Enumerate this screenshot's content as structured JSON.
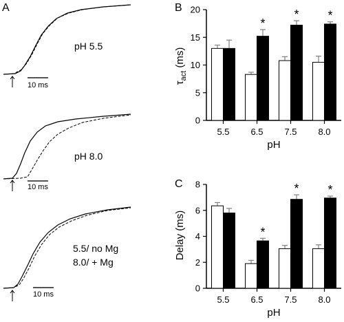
{
  "panels": {
    "a": {
      "letter": "A"
    },
    "b": {
      "letter": "B"
    },
    "c": {
      "letter": "C"
    }
  },
  "traces": [
    {
      "condition_label": "pH 5.5",
      "scale_label": "10 ms"
    },
    {
      "condition_label": "pH 8.0",
      "scale_label": "10 ms"
    },
    {
      "condition_label_line1": "5.5/ no Mg",
      "condition_label_line2": "8.0/ + Mg",
      "scale_label": "10 ms"
    }
  ],
  "colors": {
    "open_bar": "#ffffff",
    "filled_bar": "#000000",
    "axis": "#000000",
    "error_bar": "#808080"
  },
  "chart_data": [
    {
      "type": "bar",
      "panel": "B",
      "categories": [
        "5.5",
        "6.5",
        "7.5",
        "8.0"
      ],
      "series": [
        {
          "fill": "open",
          "values": [
            13.0,
            8.3,
            10.8,
            10.5
          ],
          "errors": [
            0.6,
            0.4,
            0.7,
            1.1
          ]
        },
        {
          "fill": "filled",
          "values": [
            13.0,
            15.2,
            17.2,
            17.4
          ],
          "errors": [
            1.5,
            1.2,
            0.8,
            0.4
          ]
        }
      ],
      "significance": [
        "",
        "*",
        "*",
        "*"
      ],
      "xlabel": "pH",
      "ylabel_main": "τ",
      "ylabel_sub": "act",
      "ylabel_unit": " (ms)",
      "ylim": [
        0,
        20
      ],
      "yticks": [
        "0",
        "5",
        "10",
        "15",
        "20"
      ]
    },
    {
      "type": "bar",
      "panel": "C",
      "categories": [
        "5.5",
        "6.5",
        "7.5",
        "8.0"
      ],
      "series": [
        {
          "fill": "open",
          "values": [
            6.35,
            1.9,
            3.05,
            3.05
          ],
          "errors": [
            0.25,
            0.25,
            0.25,
            0.3
          ]
        },
        {
          "fill": "filled",
          "values": [
            5.8,
            3.65,
            6.85,
            6.95
          ],
          "errors": [
            0.35,
            0.2,
            0.35,
            0.15
          ]
        }
      ],
      "significance": [
        "",
        "*",
        "*",
        "*"
      ],
      "xlabel": "pH",
      "ylabel": "Delay (ms)",
      "ylim": [
        0,
        8
      ],
      "yticks": [
        "0",
        "2",
        "4",
        "6",
        "8"
      ]
    }
  ]
}
